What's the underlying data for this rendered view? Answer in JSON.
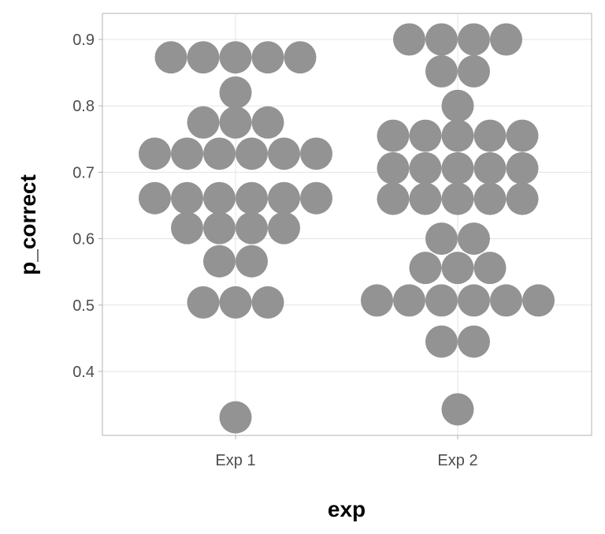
{
  "chart_data": {
    "type": "scatter",
    "subtype": "dotplot",
    "title": "",
    "xlabel": "exp",
    "ylabel": "p_correct",
    "categories": [
      "Exp 1",
      "Exp 2"
    ],
    "ylim": [
      0.31,
      0.94
    ],
    "yticks": [
      0.4,
      0.5,
      0.6,
      0.7,
      0.8,
      0.9
    ],
    "ytick_labels": [
      "0.4",
      "0.5",
      "0.6",
      "0.7",
      "0.8",
      "0.9"
    ],
    "grid": true,
    "dot_color": "#939393",
    "series": [
      {
        "name": "Exp 1",
        "bins": [
          {
            "y": 0.873,
            "count": 5
          },
          {
            "y": 0.82,
            "count": 1
          },
          {
            "y": 0.775,
            "count": 3
          },
          {
            "y": 0.728,
            "count": 6
          },
          {
            "y": 0.661,
            "count": 6
          },
          {
            "y": 0.616,
            "count": 4
          },
          {
            "y": 0.566,
            "count": 2
          },
          {
            "y": 0.504,
            "count": 3
          },
          {
            "y": 0.331,
            "count": 1
          }
        ]
      },
      {
        "name": "Exp 2",
        "bins": [
          {
            "y": 0.9,
            "count": 4
          },
          {
            "y": 0.852,
            "count": 2
          },
          {
            "y": 0.8,
            "count": 1
          },
          {
            "y": 0.755,
            "count": 5
          },
          {
            "y": 0.706,
            "count": 5
          },
          {
            "y": 0.66,
            "count": 5
          },
          {
            "y": 0.6,
            "count": 2
          },
          {
            "y": 0.556,
            "count": 3
          },
          {
            "y": 0.507,
            "count": 6
          },
          {
            "y": 0.445,
            "count": 2
          },
          {
            "y": 0.343,
            "count": 1
          }
        ]
      }
    ]
  }
}
